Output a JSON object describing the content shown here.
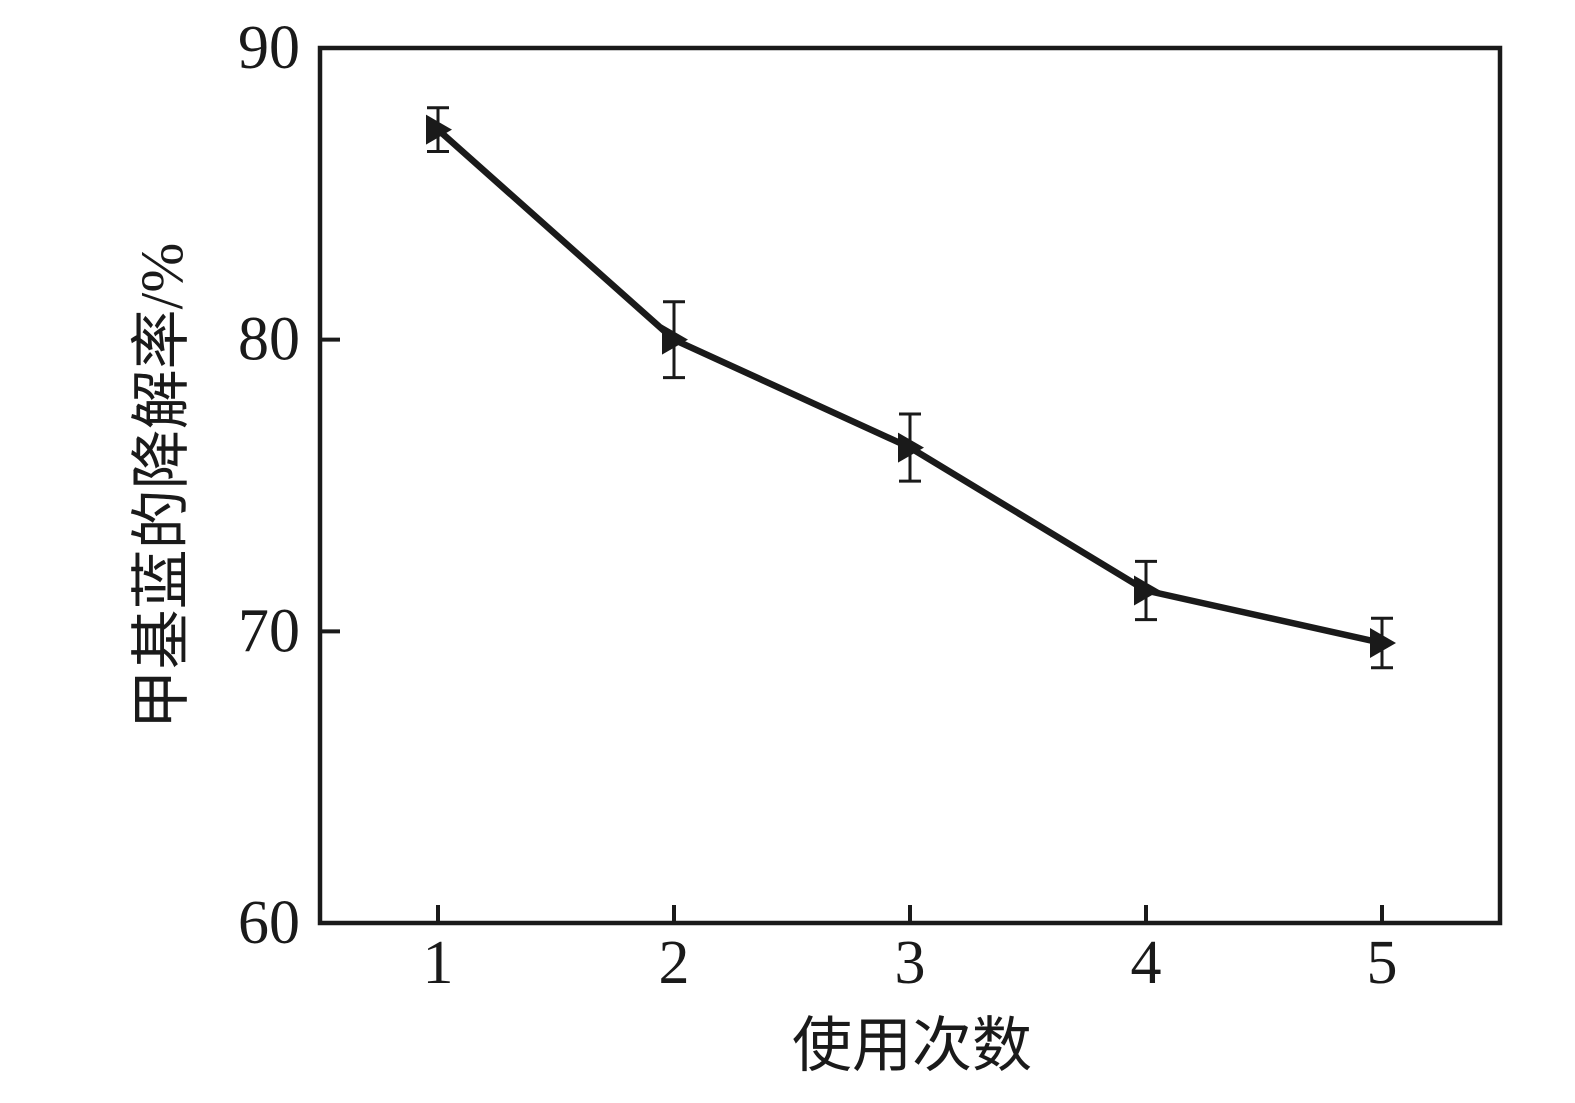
{
  "figure": {
    "background": "#ffffff",
    "ink_color": "#1a1a1a"
  },
  "chart_data": {
    "type": "line",
    "title": "",
    "xlabel": "使用次数",
    "ylabel": "甲基蓝的降解率/%",
    "x": [
      1,
      2,
      3,
      4,
      5
    ],
    "categories": [
      "1",
      "2",
      "3",
      "4",
      "5"
    ],
    "series": [
      {
        "name": "甲基蓝的降解率",
        "values": [
          87.2,
          80.0,
          76.3,
          71.4,
          69.6
        ],
        "yerr": [
          0.75,
          1.3,
          1.15,
          1.0,
          0.85
        ],
        "marker": "right-triangle",
        "color": "#1a1a1a"
      }
    ],
    "xlim": [
      0.5,
      5.5
    ],
    "ylim": [
      60,
      90
    ],
    "xticks": [
      "1",
      "2",
      "3",
      "4",
      "5"
    ],
    "yticks": [
      "60",
      "70",
      "80",
      "90"
    ],
    "grid": false,
    "legend": "none",
    "error_bars": true,
    "frame": "full-box"
  }
}
